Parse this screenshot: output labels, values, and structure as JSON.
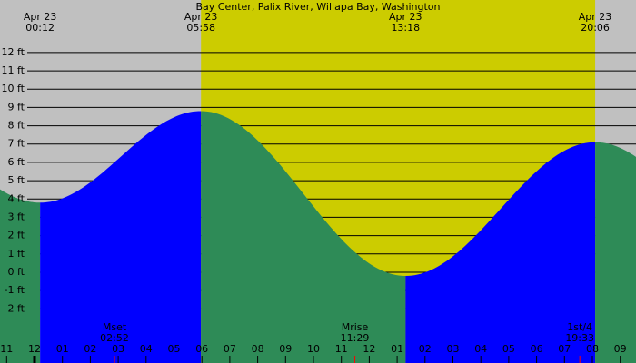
{
  "chart_data": {
    "type": "area",
    "title": "Bay Center, Palix River, Willapa Bay, Washington",
    "xlim": [
      -1.238,
      21.564
    ],
    "ylim": [
      -4.96,
      14.87
    ],
    "colors": {
      "night": "#c0c0c0",
      "day": "#cccc00",
      "rising": "#0000ff",
      "falling": "#2e8b57"
    },
    "grid": true,
    "yticks": [
      {
        "value": -2,
        "label": "-2 ft"
      },
      {
        "value": -1,
        "label": "-1 ft"
      },
      {
        "value": 0,
        "label": "0 ft"
      },
      {
        "value": 1,
        "label": "1 ft"
      },
      {
        "value": 2,
        "label": "2 ft"
      },
      {
        "value": 3,
        "label": "3 ft"
      },
      {
        "value": 4,
        "label": "4 ft"
      },
      {
        "value": 5,
        "label": "5 ft"
      },
      {
        "value": 6,
        "label": "6 ft"
      },
      {
        "value": 7,
        "label": "7 ft"
      },
      {
        "value": 8,
        "label": "8 ft"
      },
      {
        "value": 9,
        "label": "9 ft"
      },
      {
        "value": 10,
        "label": "10 ft"
      },
      {
        "value": 11,
        "label": "11 ft"
      },
      {
        "value": 12,
        "label": "12 ft"
      }
    ],
    "xticks": [
      {
        "value": -1,
        "label": "11"
      },
      {
        "value": 0,
        "label": "12"
      },
      {
        "value": 1,
        "label": "01"
      },
      {
        "value": 2,
        "label": "02"
      },
      {
        "value": 3,
        "label": "03"
      },
      {
        "value": 4,
        "label": "04"
      },
      {
        "value": 5,
        "label": "05"
      },
      {
        "value": 6,
        "label": "06"
      },
      {
        "value": 7,
        "label": "07"
      },
      {
        "value": 8,
        "label": "08"
      },
      {
        "value": 9,
        "label": "09"
      },
      {
        "value": 10,
        "label": "10"
      },
      {
        "value": 11,
        "label": "11"
      },
      {
        "value": 12,
        "label": "12"
      },
      {
        "value": 13,
        "label": "01"
      },
      {
        "value": 14,
        "label": "02"
      },
      {
        "value": 15,
        "label": "03"
      },
      {
        "value": 16,
        "label": "04"
      },
      {
        "value": 17,
        "label": "05"
      },
      {
        "value": 18,
        "label": "06"
      },
      {
        "value": 19,
        "label": "07"
      },
      {
        "value": 20,
        "label": "08"
      },
      {
        "value": 21,
        "label": "09"
      }
    ],
    "events": [
      {
        "date": "Apr 23",
        "time": "00:12",
        "x": 0.2,
        "height": 3.8
      },
      {
        "date": "Apr 23",
        "time": "05:58",
        "x": 5.967,
        "height": 8.8
      },
      {
        "date": "Apr 23",
        "time": "13:18",
        "x": 13.3,
        "height": -0.2
      },
      {
        "date": "Apr 23",
        "time": "20:06",
        "x": 20.1,
        "height": 7.1
      }
    ],
    "moon": [
      {
        "label": "Mset",
        "time": "02:52",
        "x": 2.867
      },
      {
        "label": "Mrise",
        "time": "11:29",
        "x": 11.483
      },
      {
        "label": "1st/4",
        "time": "19:33",
        "x": 19.55
      }
    ]
  }
}
